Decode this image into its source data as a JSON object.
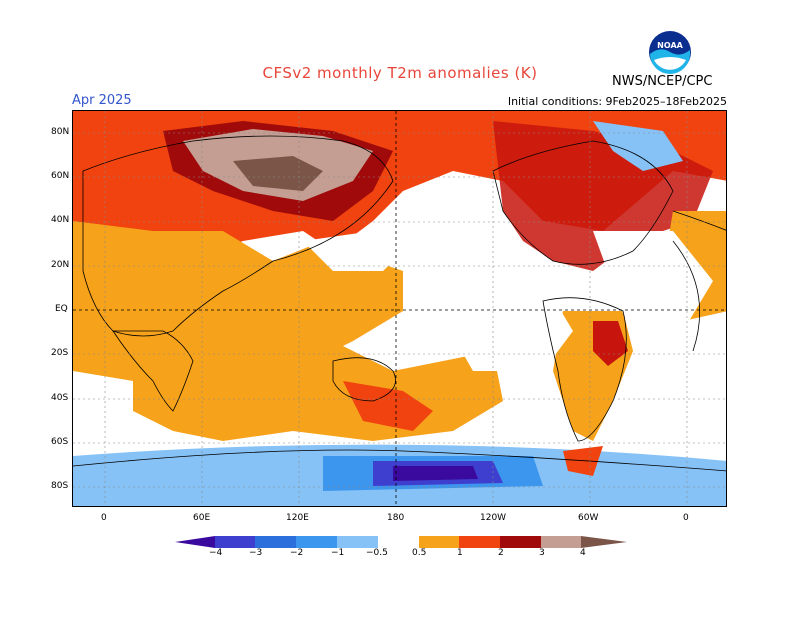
{
  "header": {
    "title": "CFSv2 monthly T2m anomalies (K)",
    "month": "Apr 2025",
    "initial_conditions": "Initial conditions: 9Feb2025–18Feb2025",
    "credit": "NWS/NCEP/CPC",
    "logo_text": "NOAA"
  },
  "axes": {
    "lat_labels": [
      "80N",
      "60N",
      "40N",
      "20N",
      "EQ",
      "20S",
      "40S",
      "60S",
      "80S"
    ],
    "lon_labels": [
      "0",
      "60E",
      "120E",
      "180",
      "120W",
      "60W",
      "0"
    ]
  },
  "colorbar": {
    "units": "K",
    "ticks": [
      "−4",
      "−3",
      "−2",
      "−1",
      "−0.5",
      "0.5",
      "1",
      "2",
      "3",
      "4"
    ],
    "colors": {
      "lt_m4": "#3a0a9e",
      "m4_m3": "#3f3fcf",
      "m3_m2": "#2a6fdc",
      "m2_m1": "#3d96ee",
      "m1_m05": "#86c2f6",
      "neutral": "#ffffff",
      "p05_p1": "#f7a21b",
      "p1_p2": "#f0430f",
      "p2_p3": "#c7150d",
      "p3_p4": "#a00a0a",
      "p4_p5": "#c49e92",
      "gt_p5": "#7a5548"
    }
  }
}
